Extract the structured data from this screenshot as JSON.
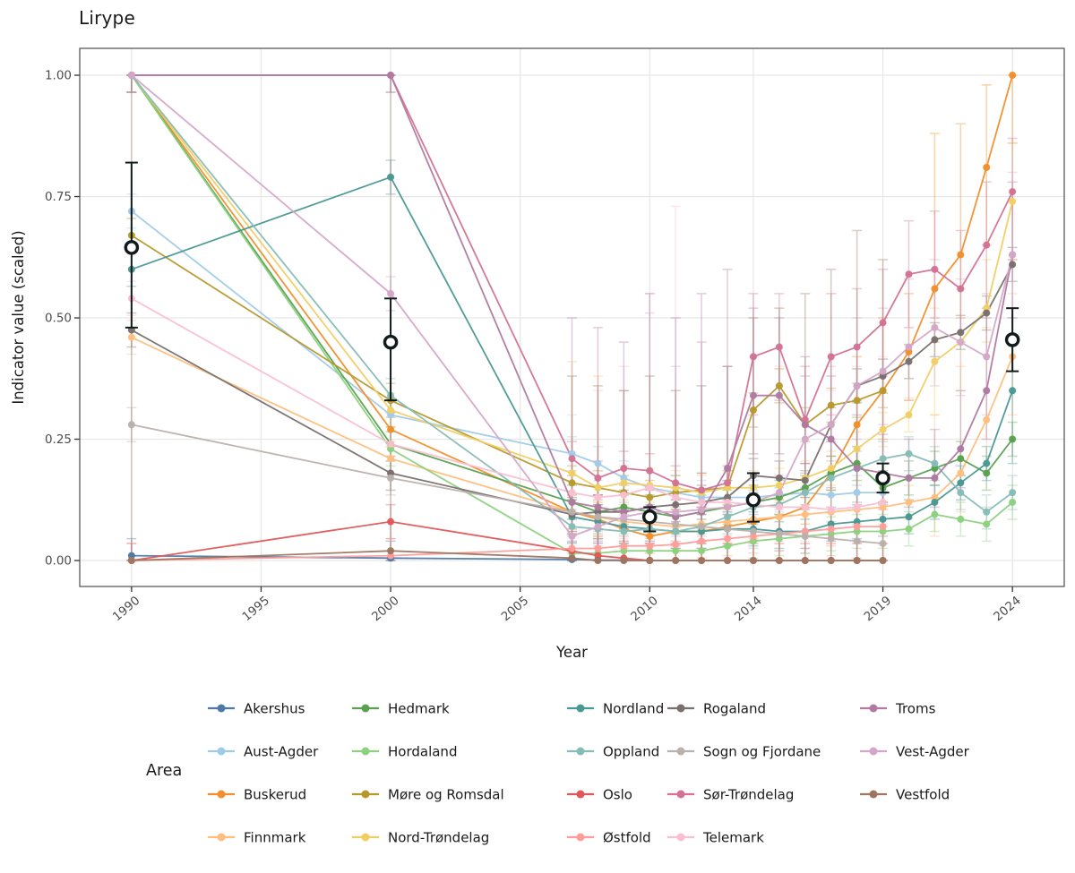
{
  "chart_data": {
    "type": "line",
    "title": "Lirype",
    "xlabel": "Year",
    "ylabel": "Indicator value (scaled)",
    "legend_title": "Area",
    "legend_position": "bottom",
    "grid": "major-only",
    "panel_border": true,
    "x_ticks": [
      1990,
      1995,
      2000,
      2005,
      2010,
      2014,
      2019,
      2024
    ],
    "y_ticks": [
      {
        "v": 0.0,
        "label": "0.00"
      },
      {
        "v": 0.25,
        "label": "0.25"
      },
      {
        "v": 0.5,
        "label": "0.50"
      },
      {
        "v": 0.75,
        "label": "0.75"
      },
      {
        "v": 1.0,
        "label": "1.00"
      }
    ],
    "xlim": [
      1988,
      2026
    ],
    "ylim": [
      -0.0535,
      1.0554
    ],
    "default_err_halfwidth": 0.035,
    "years": [
      1990,
      2000,
      2007,
      2008,
      2009,
      2010,
      2011,
      2012,
      2013,
      2014,
      2015,
      2016,
      2017,
      2018,
      2019,
      2020,
      2021,
      2022,
      2023,
      2024
    ],
    "series": [
      {
        "name": "Akershus",
        "color": "#4E79A7",
        "values": [
          0.01,
          0.005,
          0.002,
          0.001,
          0.001,
          0.0,
          null,
          null,
          null,
          null,
          null,
          null,
          null,
          null,
          null,
          null,
          null,
          null,
          null,
          null
        ],
        "err": null
      },
      {
        "name": "Aust-Agder",
        "color": "#A0CBE8",
        "values": [
          0.72,
          0.3,
          0.22,
          0.2,
          0.17,
          0.15,
          0.14,
          0.13,
          0.13,
          0.13,
          0.135,
          0.14,
          0.135,
          0.14,
          0.14,
          null,
          null,
          null,
          null,
          null
        ],
        "err": null
      },
      {
        "name": "Buskerud",
        "color": "#F28E2B",
        "values": [
          1.0,
          0.27,
          0.1,
          0.085,
          0.065,
          0.05,
          0.06,
          0.06,
          0.07,
          0.08,
          0.09,
          0.11,
          0.18,
          0.28,
          0.35,
          0.43,
          0.56,
          0.63,
          0.81,
          1.0
        ],
        "err": [
          null,
          null,
          null,
          null,
          null,
          null,
          null,
          null,
          null,
          null,
          null,
          null,
          null,
          [
            0.2,
            0.42
          ],
          [
            0.25,
            0.5
          ],
          [
            0.33,
            0.55
          ],
          [
            0.45,
            0.88
          ],
          [
            0.5,
            0.9
          ],
          [
            0.65,
            0.98
          ],
          [
            0.86,
            1.0
          ]
        ]
      },
      {
        "name": "Finnmark",
        "color": "#FFBE7D",
        "values": [
          0.46,
          0.21,
          0.1,
          0.09,
          0.08,
          0.075,
          0.07,
          0.075,
          0.08,
          0.085,
          0.09,
          0.095,
          0.1,
          0.105,
          0.11,
          0.12,
          0.13,
          0.18,
          0.29,
          0.42
        ],
        "err": [
          null,
          null,
          null,
          null,
          null,
          null,
          null,
          null,
          null,
          null,
          null,
          null,
          null,
          null,
          null,
          null,
          [
            0.05,
            0.3
          ],
          [
            0.1,
            0.4
          ],
          [
            0.2,
            0.48
          ],
          [
            0.3,
            0.55
          ]
        ]
      },
      {
        "name": "Hedmark",
        "color": "#59A14F",
        "values": [
          1.0,
          0.24,
          0.12,
          0.1,
          0.11,
          0.1,
          0.09,
          0.1,
          0.11,
          0.12,
          0.13,
          0.15,
          0.18,
          0.2,
          0.15,
          0.17,
          0.19,
          0.21,
          0.18,
          0.25
        ],
        "err": null
      },
      {
        "name": "Hordaland",
        "color": "#8CD17D",
        "values": [
          1.0,
          0.23,
          0.015,
          0.015,
          0.02,
          0.02,
          0.02,
          0.02,
          0.03,
          0.04,
          0.045,
          0.05,
          0.055,
          0.06,
          0.06,
          0.065,
          0.095,
          0.085,
          0.075,
          0.12
        ],
        "err": null
      },
      {
        "name": "Møre og Romsdal",
        "color": "#B6992D",
        "values": [
          0.67,
          0.33,
          0.16,
          0.15,
          0.14,
          0.13,
          0.14,
          0.145,
          0.15,
          0.31,
          0.36,
          0.28,
          0.32,
          0.33,
          0.35,
          null,
          null,
          null,
          null,
          null
        ],
        "err": null
      },
      {
        "name": "Nord-Trøndelag",
        "color": "#F1CE63",
        "values": [
          1.0,
          0.31,
          0.18,
          0.15,
          0.16,
          0.155,
          0.15,
          0.14,
          0.15,
          0.15,
          0.155,
          0.17,
          0.19,
          0.23,
          0.27,
          0.3,
          0.41,
          0.45,
          0.52,
          0.74
        ],
        "err": [
          null,
          null,
          [
            0.1,
            0.41
          ],
          [
            0.09,
            0.38
          ],
          null,
          null,
          null,
          null,
          null,
          null,
          null,
          null,
          null,
          null,
          null,
          null,
          [
            0.3,
            0.52
          ],
          [
            0.35,
            0.56
          ],
          [
            0.45,
            0.62
          ],
          [
            0.62,
            0.86
          ]
        ]
      },
      {
        "name": "Nordland",
        "color": "#499894",
        "values": [
          0.6,
          0.79,
          0.09,
          0.08,
          0.07,
          0.065,
          0.06,
          0.06,
          0.065,
          0.065,
          0.06,
          0.06,
          0.075,
          0.08,
          0.085,
          0.09,
          0.12,
          0.16,
          0.2,
          0.35
        ],
        "err": [
          null,
          null,
          null,
          null,
          null,
          null,
          null,
          null,
          null,
          null,
          null,
          null,
          null,
          null,
          null,
          null,
          null,
          null,
          null,
          [
            0.2,
            0.45
          ]
        ]
      },
      {
        "name": "Oppland",
        "color": "#86BCB6",
        "values": [
          1.0,
          0.34,
          0.07,
          0.065,
          0.06,
          0.065,
          0.06,
          0.07,
          0.09,
          0.11,
          0.115,
          0.14,
          0.17,
          0.19,
          0.21,
          0.22,
          0.2,
          0.14,
          0.1,
          0.14
        ],
        "err": null
      },
      {
        "name": "Oslo",
        "color": "#E15759",
        "values": [
          0.0,
          0.08,
          0.02,
          0.01,
          0.005,
          0.0,
          0.0,
          0.0,
          0.0,
          0.0,
          0.0,
          0.0,
          0.0,
          0.0,
          0.0,
          null,
          null,
          null,
          null,
          null
        ],
        "err": null
      },
      {
        "name": "Østfold",
        "color": "#FF9D9A",
        "values": [
          0.0,
          0.01,
          0.025,
          0.025,
          0.03,
          0.03,
          0.033,
          0.04,
          0.045,
          0.05,
          0.055,
          0.06,
          0.065,
          0.07,
          0.07,
          null,
          null,
          null,
          null,
          null
        ],
        "err": null
      },
      {
        "name": "Rogaland",
        "color": "#79706E",
        "values": [
          0.475,
          0.18,
          0.095,
          0.1,
          0.1,
          0.11,
          0.115,
          0.12,
          0.13,
          0.175,
          0.17,
          0.165,
          0.28,
          0.36,
          0.38,
          0.41,
          0.455,
          0.47,
          0.51,
          0.61
        ],
        "err": null
      },
      {
        "name": "Sogn og Fjordane",
        "color": "#BAB0AC",
        "values": [
          0.28,
          0.17,
          0.1,
          0.09,
          0.085,
          0.08,
          0.075,
          0.07,
          0.065,
          0.06,
          0.055,
          0.05,
          0.045,
          0.04,
          0.035,
          null,
          null,
          null,
          null,
          null
        ],
        "err": null
      },
      {
        "name": "Sør-Trøndelag",
        "color": "#D37295",
        "values": [
          1.0,
          1.0,
          0.21,
          0.17,
          0.19,
          0.185,
          0.16,
          0.145,
          0.16,
          0.42,
          0.44,
          0.29,
          0.42,
          0.44,
          0.49,
          0.59,
          0.6,
          0.56,
          0.65,
          0.76
        ],
        "err": [
          null,
          null,
          null,
          null,
          null,
          null,
          null,
          null,
          null,
          [
            0.3,
            0.55
          ],
          [
            0.33,
            0.55
          ],
          [
            0.2,
            0.4
          ],
          [
            0.3,
            0.55
          ],
          [
            0.33,
            0.56
          ],
          [
            0.38,
            0.6
          ],
          [
            0.48,
            0.7
          ],
          [
            0.5,
            0.72
          ],
          [
            0.45,
            0.68
          ],
          [
            0.52,
            0.78
          ],
          [
            0.62,
            0.87
          ]
        ]
      },
      {
        "name": "Telemark",
        "color": "#FABFD2",
        "values": [
          0.54,
          0.24,
          0.14,
          0.13,
          0.135,
          0.15,
          0.13,
          0.12,
          0.12,
          0.115,
          0.11,
          0.11,
          0.105,
          0.11,
          0.12,
          null,
          null,
          null,
          null,
          null
        ],
        "err": [
          null,
          null,
          [
            0.05,
            0.3
          ],
          [
            0.05,
            0.35
          ],
          [
            0.05,
            0.4
          ],
          [
            0.05,
            0.55
          ],
          [
            0.04,
            0.73
          ],
          [
            0.04,
            0.45
          ],
          [
            0.04,
            0.4
          ],
          [
            0.04,
            0.42
          ],
          [
            0.04,
            0.4
          ],
          [
            0.04,
            0.38
          ],
          [
            0.04,
            0.35
          ],
          [
            0.04,
            0.4
          ],
          [
            0.05,
            0.42
          ],
          null,
          null,
          null,
          null,
          null
        ]
      },
      {
        "name": "Troms",
        "color": "#B07AA1",
        "values": [
          1.0,
          1.0,
          0.12,
          0.11,
          0.1,
          0.11,
          0.09,
          0.1,
          0.19,
          0.34,
          0.34,
          0.28,
          0.25,
          0.19,
          0.18,
          0.17,
          0.17,
          0.23,
          0.35,
          0.63
        ],
        "err": [
          null,
          null,
          [
            0.04,
            0.5
          ],
          [
            0.04,
            0.48
          ],
          [
            0.03,
            0.45
          ],
          [
            0.04,
            0.55
          ],
          [
            0.03,
            0.5
          ],
          [
            0.04,
            0.55
          ],
          [
            0.08,
            0.6
          ],
          [
            0.22,
            0.52
          ],
          [
            0.22,
            0.5
          ],
          [
            0.18,
            0.42
          ],
          [
            0.15,
            0.38
          ],
          [
            0.12,
            0.3
          ],
          [
            0.12,
            0.26
          ],
          [
            0.11,
            0.25
          ],
          [
            0.11,
            0.27
          ],
          [
            0.15,
            0.35
          ],
          [
            0.25,
            0.5
          ],
          [
            0.5,
            0.78
          ]
        ]
      },
      {
        "name": "Vest-Agder",
        "color": "#D4A6C8",
        "values": [
          1.0,
          0.55,
          0.05,
          0.07,
          0.09,
          0.1,
          0.1,
          0.105,
          0.11,
          0.12,
          0.14,
          0.25,
          0.28,
          0.36,
          0.39,
          0.44,
          0.48,
          0.45,
          0.42,
          0.63
        ],
        "err": [
          null,
          null,
          null,
          null,
          [
            0.04,
            0.35
          ],
          [
            0.05,
            0.51
          ],
          [
            0.05,
            0.4
          ],
          [
            0.05,
            0.45
          ],
          [
            0.05,
            0.4
          ],
          null,
          null,
          [
            0.15,
            0.38
          ],
          [
            0.18,
            0.4
          ],
          [
            0.25,
            0.5
          ],
          [
            0.28,
            0.52
          ],
          [
            0.33,
            0.58
          ],
          [
            0.36,
            0.62
          ],
          [
            0.34,
            0.58
          ],
          [
            0.3,
            0.55
          ],
          [
            0.5,
            0.8
          ]
        ]
      },
      {
        "name": "Vestfold",
        "color": "#9D7660",
        "values": [
          0.0,
          0.02,
          0.005,
          0.0,
          0.0,
          0.0,
          0.0,
          0.0,
          0.0,
          0.0,
          0.0,
          0.0,
          0.0,
          0.0,
          0.0,
          null,
          null,
          null,
          null,
          null
        ],
        "err": [
          [
            0,
            1.0
          ],
          [
            0,
            1.0
          ],
          [
            0,
            0.38
          ],
          [
            0,
            0.36
          ],
          [
            0,
            0.35
          ],
          [
            0,
            0.38
          ],
          [
            0,
            0.35
          ],
          [
            0,
            0.36
          ],
          [
            0,
            0.4
          ],
          [
            0,
            0.5
          ],
          [
            0,
            0.52
          ],
          [
            0,
            0.55
          ],
          [
            0,
            0.6
          ],
          [
            0,
            0.68
          ],
          [
            0,
            0.62
          ],
          null,
          null,
          null,
          null,
          null
        ]
      }
    ],
    "mean_series": {
      "name": "mean-all-areas",
      "color": "#111b1b",
      "years": [
        1990,
        2000,
        2010,
        2014,
        2019,
        2024
      ],
      "values": [
        0.645,
        0.45,
        0.09,
        0.125,
        0.17,
        0.455
      ],
      "err": [
        [
          0.48,
          0.82
        ],
        [
          0.33,
          0.54
        ],
        [
          0.06,
          0.11
        ],
        [
          0.08,
          0.18
        ],
        [
          0.14,
          0.2
        ],
        [
          0.39,
          0.52
        ]
      ]
    },
    "style": {
      "grid_color": "#E6E6E6",
      "panel_border_color": "#4E4E4E",
      "tick_color": "#333333",
      "tick_label_color": "#4D4D4D",
      "axis_title_color": "#1a1a1a",
      "text_color": "#1a1a1a"
    }
  }
}
